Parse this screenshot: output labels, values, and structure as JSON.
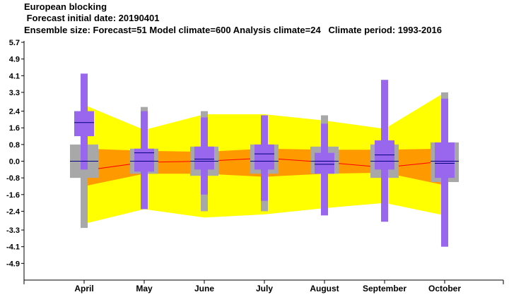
{
  "header": {
    "title": "European blocking",
    "forecast_date_line": " Forecast initial date: 20190401",
    "ensemble_line": "Ensemble size: Forecast=51 Model climate=600 Analysis climate=24   Climate period: 1993-2016"
  },
  "colors": {
    "climate_outer_band": "#ffff00",
    "climate_inner_band": "#ff9900",
    "climate_median_line": "#ff0000",
    "model_climate_box": "#a8a8a8",
    "forecast_box": "#9966ee",
    "median_tick": "#000080"
  },
  "chart_data": {
    "type": "box",
    "categories": [
      "April",
      "May",
      "June",
      "July",
      "August",
      "September",
      "October"
    ],
    "ylim": [
      -5.7,
      5.7
    ],
    "yticks": [
      "5.7",
      "4.9",
      "4.1",
      "3.3",
      "2.4",
      "1.6",
      "0.8",
      "0.0",
      "-0.8",
      "-1.6",
      "-2.4",
      "-3.3",
      "-4.1",
      "-4.9"
    ],
    "ytick_values": [
      5.7,
      4.9,
      4.1,
      3.3,
      2.4,
      1.6,
      0.8,
      0.0,
      -0.8,
      -1.6,
      -2.4,
      -3.3,
      -4.1,
      -4.9
    ],
    "analysis_climate": {
      "outer_upper": [
        2.7,
        1.5,
        2.25,
        2.25,
        1.95,
        1.55,
        3.3
      ],
      "inner_upper": [
        0.6,
        0.5,
        0.45,
        0.6,
        0.55,
        0.55,
        0.6
      ],
      "median": [
        -0.45,
        -0.05,
        0.0,
        0.15,
        -0.05,
        -0.3,
        0.0
      ],
      "inner_lower": [
        -1.2,
        -0.6,
        -0.6,
        -0.75,
        -0.6,
        -0.55,
        -1.15
      ],
      "outer_lower": [
        -3.0,
        -2.3,
        -2.7,
        -2.55,
        -2.25,
        -2.0,
        -2.6
      ]
    },
    "model_climate": {
      "upper_whisker": [
        0.8,
        2.6,
        2.4,
        2.2,
        2.2,
        3.0,
        3.3
      ],
      "q3": [
        0.8,
        0.6,
        0.7,
        0.8,
        0.7,
        0.8,
        0.9
      ],
      "median": [
        0.0,
        0.0,
        0.0,
        0.0,
        0.0,
        0.0,
        0.0
      ],
      "q1": [
        -0.8,
        -0.6,
        -0.7,
        -0.6,
        -0.6,
        -0.8,
        -1.0
      ],
      "lower_whisker": [
        -3.2,
        -2.3,
        -2.4,
        -2.4,
        -2.2,
        -2.9,
        -3.3
      ]
    },
    "forecast": {
      "max": [
        4.2,
        2.4,
        2.1,
        2.2,
        1.8,
        3.9,
        3.0
      ],
      "q3": [
        2.4,
        0.6,
        0.7,
        0.8,
        0.4,
        1.0,
        0.9
      ],
      "median": [
        1.85,
        0.4,
        0.1,
        0.35,
        -0.15,
        0.3,
        -0.1
      ],
      "q1": [
        1.2,
        -0.5,
        -0.4,
        -0.4,
        -0.6,
        -0.4,
        -0.8
      ],
      "min": [
        -0.4,
        -2.3,
        -1.6,
        -1.9,
        -2.6,
        -2.9,
        -4.1
      ]
    }
  }
}
